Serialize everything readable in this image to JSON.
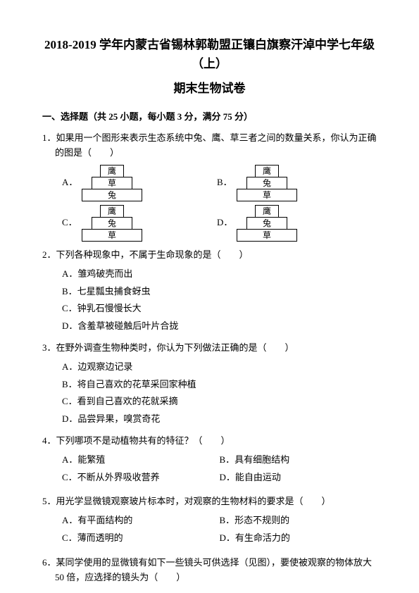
{
  "title_line1": "2018-2019 学年内蒙古省锡林郭勒盟正镶白旗察汗淖中学七年级（上）",
  "title_line2": "期末生物试卷",
  "section": "一、选择题（共 25 小题，每小题 3 分，满分 75 分）",
  "q1": {
    "num": "1．",
    "text": "如果用一个图形来表示生态系统中兔、鹰、草三者之间的数量关系，你认为正确的图是（　　）",
    "A": "A．",
    "B": "B．",
    "C": "C．",
    "D": "D．",
    "figA": [
      "鹰",
      "草",
      "兔"
    ],
    "figB": [
      "鹰",
      "兔",
      "草"
    ],
    "figC": [
      "鹰",
      "兔",
      "草"
    ],
    "figD": [
      "鹰",
      "兔",
      "草"
    ]
  },
  "q2": {
    "num": "2．",
    "text": "下列各种现象中，不属于生命现象的是（　　）",
    "A": "A．雏鸡破壳而出",
    "B": "B．七星瓢虫捕食蚜虫",
    "C": "C．钟乳石慢慢长大",
    "D": "D．含羞草被碰触后叶片合拢"
  },
  "q3": {
    "num": "3．",
    "text": "在野外调查生物种类时，你认为下列做法正确的是（　　）",
    "A": "A．边观察边记录",
    "B": "B．将自己喜欢的花草采回家种植",
    "C": "C．看到自己喜欢的花就采摘",
    "D": "D．品尝异果，嗅赏奇花"
  },
  "q4": {
    "num": "4．",
    "text": "下列哪项不是动植物共有的特征？（　　）",
    "A": "A．能繁殖",
    "B": "B．具有细胞结构",
    "C": "C．不断从外界吸收营养",
    "D": "D．能自由运动"
  },
  "q5": {
    "num": "5．",
    "text": "用光学显微镜观察玻片标本时，对观察的生物材料的要求是（　　）",
    "A": "A．有平面结构的",
    "B": "B．形态不规则的",
    "C": "C．薄而透明的",
    "D": "D．有生命活力的"
  },
  "q6": {
    "num": "6．",
    "text": "某同学使用的显微镜有如下一些镜头可供选择（见图），要使被观察的物体放大 50 倍，应选择的镜头为（　　）"
  }
}
